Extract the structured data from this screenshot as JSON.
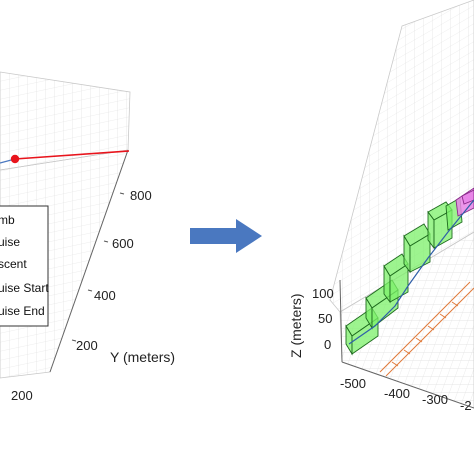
{
  "left_plot": {
    "y_axis_label": "Y (meters)",
    "y_ticks": [
      "800",
      "600",
      "400",
      "200"
    ],
    "x_ticks": [
      "200"
    ],
    "legend": [
      "mb",
      "uise",
      "scent",
      "uise Start",
      "uise End"
    ],
    "marker_color": "#e8141c",
    "line_color": "#e8141c"
  },
  "arrow": {
    "color": "#4a78c0"
  },
  "right_plot": {
    "z_axis_label": "Z (meters)",
    "z_ticks": [
      "100",
      "50",
      "0"
    ],
    "x_ticks": [
      "-500",
      "-400",
      "-300",
      "-2"
    ],
    "box_color": "#7cf06a",
    "curve_box_color": "#e884e8",
    "shadow_color": "#e07a3a"
  }
}
